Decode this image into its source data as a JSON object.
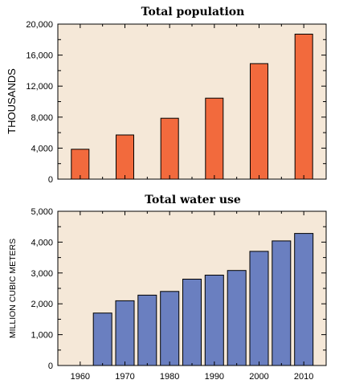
{
  "chart_data": [
    {
      "type": "bar",
      "title": "Total population",
      "ylabel": "THOUSANDS",
      "xlabel": "",
      "ylim": [
        0,
        20000
      ],
      "yticks": [
        "0",
        "4,000",
        "8,000",
        "12,000",
        "16,000",
        "20,000"
      ],
      "ytick_values": [
        0,
        4000,
        8000,
        12000,
        16000,
        20000
      ],
      "categories": [
        1960,
        1970,
        1980,
        1990,
        2000,
        2010
      ],
      "values": [
        3850,
        5700,
        7850,
        10450,
        14900,
        18700
      ],
      "colors": {
        "bar": "#f26a3d",
        "background": "#f5e8d8",
        "edge": "#000000"
      }
    },
    {
      "type": "bar",
      "title": "Total water use",
      "ylabel": "MILLION CUBIC METERS",
      "xlabel": "",
      "ylim": [
        0,
        5000
      ],
      "yticks": [
        "0",
        "1,000",
        "2,000",
        "3,000",
        "4,000",
        "5,000"
      ],
      "ytick_values": [
        0,
        1000,
        2000,
        3000,
        4000,
        5000
      ],
      "xticks": [
        "1960",
        "1970",
        "1980",
        "1990",
        "2000",
        "2010"
      ],
      "xtick_values": [
        1960,
        1970,
        1980,
        1990,
        2000,
        2010
      ],
      "categories": [
        1965,
        1970,
        1975,
        1980,
        1985,
        1990,
        1995,
        2000,
        2005,
        2010
      ],
      "values": [
        1700,
        2100,
        2280,
        2400,
        2800,
        2930,
        3080,
        3700,
        4040,
        4280
      ],
      "colors": {
        "bar": "#6a7fc0",
        "background": "#f5e8d8",
        "edge": "#000000"
      }
    }
  ]
}
